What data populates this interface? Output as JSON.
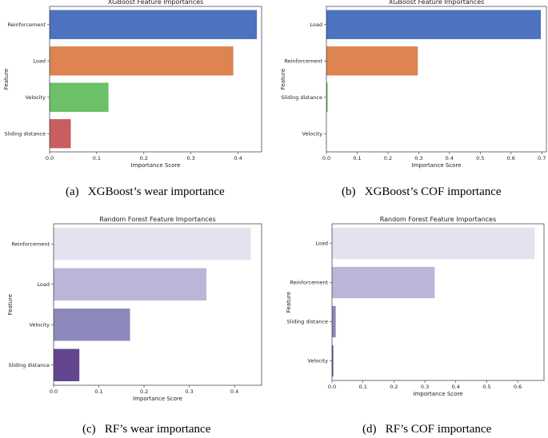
{
  "chart_data": [
    {
      "type": "bar",
      "orientation": "horizontal",
      "title": "XGBoost Feature Importances",
      "xlabel": "Importance Score",
      "ylabel": "Feature",
      "categories": [
        "Reinforcement",
        "Load",
        "Velocity",
        "Sliding distance"
      ],
      "values": [
        0.44,
        0.39,
        0.125,
        0.045
      ],
      "colors": [
        "#4C72C0",
        "#DD8452",
        "#6CC068",
        "#C85E5E"
      ],
      "xlim": [
        0,
        0.45
      ],
      "xticks": [
        0.0,
        0.1,
        0.2,
        0.3,
        0.4
      ],
      "xtick_labels": [
        "0.0",
        "0.1",
        "0.2",
        "0.3",
        "0.4"
      ],
      "caption": "(a)   XGBoost’s wear importance"
    },
    {
      "type": "bar",
      "orientation": "horizontal",
      "title": "XGBoost Feature Importances",
      "xlabel": "Importance Score",
      "ylabel": "Feature",
      "categories": [
        "Load",
        "Reinforcement",
        "Sliding distance",
        "Velocity"
      ],
      "values": [
        0.697,
        0.297,
        0.004,
        0.0
      ],
      "colors": [
        "#4C72C0",
        "#DD8452",
        "#6CC068",
        "#C85E5E"
      ],
      "xlim": [
        0,
        0.715
      ],
      "xticks": [
        0.0,
        0.1,
        0.2,
        0.3,
        0.4,
        0.5,
        0.6,
        0.7
      ],
      "xtick_labels": [
        "0.0",
        "0.1",
        "0.2",
        "0.3",
        "0.4",
        "0.5",
        "0.6",
        "0.7"
      ],
      "caption": "(b)   XGBoost’s COF importance"
    },
    {
      "type": "bar",
      "orientation": "horizontal",
      "title": "Random Forest Feature Importances",
      "xlabel": "Importance Score",
      "ylabel": "Feature",
      "categories": [
        "Reinforcement",
        "Load",
        "Velocity",
        "Sliding distance"
      ],
      "values": [
        0.436,
        0.338,
        0.169,
        0.057
      ],
      "colors": [
        "#E4E2EE",
        "#B9B6D8",
        "#8D88BB",
        "#63468F"
      ],
      "xlim": [
        0,
        0.46
      ],
      "xticks": [
        0.0,
        0.1,
        0.2,
        0.3,
        0.4
      ],
      "xtick_labels": [
        "0.0",
        "0.1",
        "0.2",
        "0.3",
        "0.4"
      ],
      "caption": "(c)   RF’s wear importance"
    },
    {
      "type": "bar",
      "orientation": "horizontal",
      "title": "Random Forest Feature Importances",
      "xlabel": "Importance Score",
      "ylabel": "Feature",
      "categories": [
        "Load",
        "Reinforcement",
        "Sliding distance",
        "Velocity"
      ],
      "values": [
        0.655,
        0.332,
        0.012,
        0.004
      ],
      "colors": [
        "#E4E2EE",
        "#B9B6D8",
        "#8D88BB",
        "#63468F"
      ],
      "xlim": [
        0,
        0.685
      ],
      "xticks": [
        0.0,
        0.1,
        0.2,
        0.3,
        0.4,
        0.5,
        0.6
      ],
      "xtick_labels": [
        "0.0",
        "0.1",
        "0.2",
        "0.3",
        "0.4",
        "0.5",
        "0.6"
      ],
      "caption": "(d)   RF’s COF importance"
    }
  ]
}
